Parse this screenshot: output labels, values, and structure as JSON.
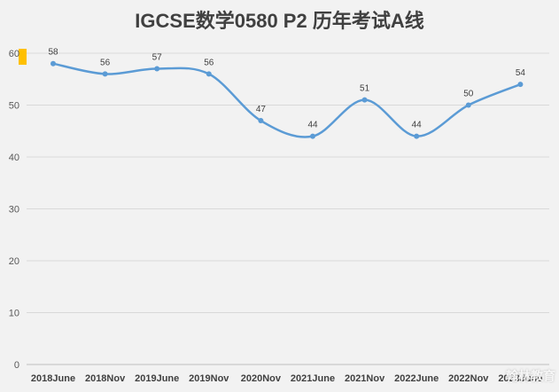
{
  "title": "IGCSE数学0580 P2 历年考试A线",
  "colors": {
    "background": "#f2f2f2",
    "line": "#5b9bd5",
    "grid": "#d9d9d9",
    "legend_swatch": "#ffc000"
  },
  "watermark": "翰林教育",
  "chart_data": {
    "type": "line",
    "title": "IGCSE数学0580 P2 历年考试A线",
    "categories": [
      "2018June",
      "2018Nov",
      "2019June",
      "2019Nov",
      "2020Nov",
      "2021June",
      "2021Nov",
      "2022June",
      "2022Nov",
      "2023June"
    ],
    "values": [
      58,
      56,
      57,
      56,
      47,
      44,
      51,
      44,
      50,
      54
    ],
    "ylim": [
      0,
      60
    ],
    "yticks": [
      0,
      10,
      20,
      30,
      40,
      50,
      60
    ],
    "smooth": true,
    "grid": true,
    "data_labels": true
  }
}
